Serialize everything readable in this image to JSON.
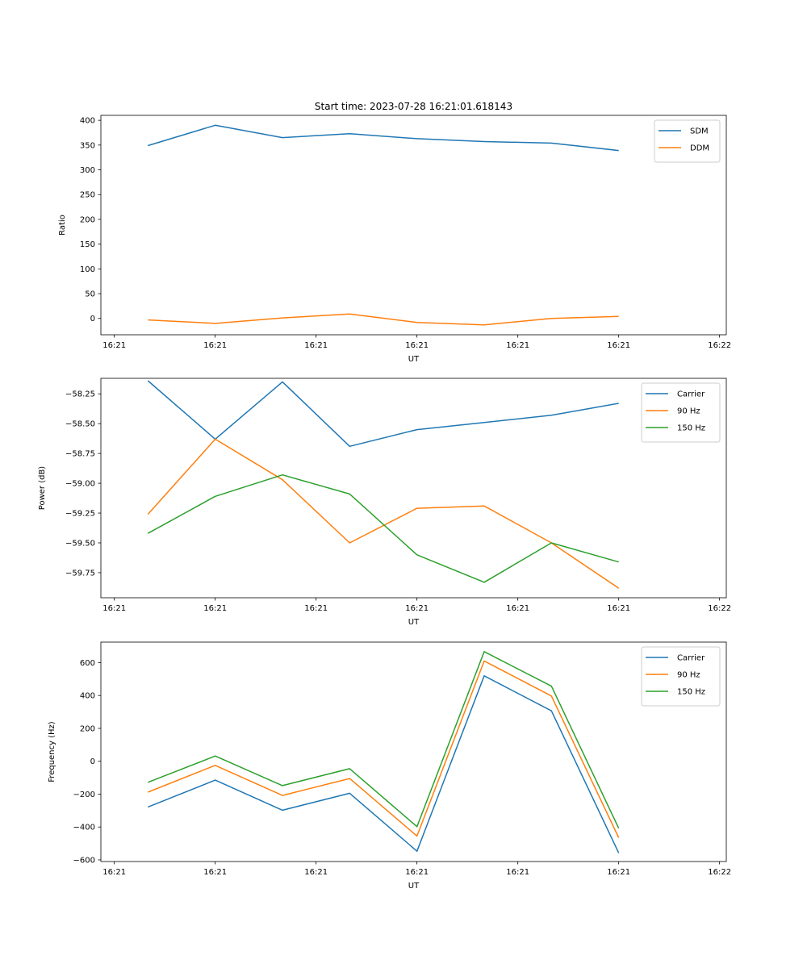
{
  "chart_data": [
    {
      "type": "line",
      "title": "Start time: 2023-07-28 16:21:01.618143",
      "xlabel": "UT",
      "ylabel": "Ratio",
      "xlim": [
        -0.2,
        9.1
      ],
      "ylim": [
        -33,
        410
      ],
      "x": [
        0.5,
        1.5,
        2.5,
        3.5,
        4.5,
        5.5,
        6.5,
        7.5
      ],
      "x_ticks": [
        0,
        1.5,
        3,
        4.5,
        6,
        7.5,
        9
      ],
      "x_tick_labels": [
        "16:21",
        "16:21",
        "16:21",
        "16:21",
        "16:21",
        "16:21",
        "16:22"
      ],
      "y_ticks": [
        0,
        50,
        100,
        150,
        200,
        250,
        300,
        350,
        400
      ],
      "y_tick_labels": [
        "0",
        "50",
        "100",
        "150",
        "200",
        "250",
        "300",
        "350",
        "400"
      ],
      "legend": "upper right",
      "series": [
        {
          "name": "SDM",
          "color": "#1f77b4",
          "values": [
            349,
            390,
            365,
            373,
            363,
            357,
            354,
            339
          ]
        },
        {
          "name": "DDM",
          "color": "#ff7f0e",
          "values": [
            -3,
            -10,
            1,
            9,
            -8,
            -13,
            0,
            4
          ]
        }
      ]
    },
    {
      "type": "line",
      "xlabel": "UT",
      "ylabel": "Power (dB)",
      "xlim": [
        -0.2,
        9.1
      ],
      "ylim": [
        -59.96,
        -58.12
      ],
      "x": [
        0.5,
        1.5,
        2.5,
        3.5,
        4.5,
        5.5,
        6.5,
        7.5
      ],
      "x_ticks": [
        0,
        1.5,
        3,
        4.5,
        6,
        7.5,
        9
      ],
      "x_tick_labels": [
        "16:21",
        "16:21",
        "16:21",
        "16:21",
        "16:21",
        "16:21",
        "16:22"
      ],
      "y_ticks": [
        -58.25,
        -58.5,
        -58.75,
        -59.0,
        -59.25,
        -59.5,
        -59.75
      ],
      "y_tick_labels": [
        "−58.25",
        "−58.50",
        "−58.75",
        "−59.00",
        "−59.25",
        "−59.50",
        "−59.75"
      ],
      "legend": "upper right",
      "series": [
        {
          "name": "Carrier",
          "color": "#1f77b4",
          "values": [
            -58.14,
            -58.63,
            -58.15,
            -58.69,
            -58.55,
            -58.49,
            -58.43,
            -58.33
          ]
        },
        {
          "name": "90 Hz",
          "color": "#ff7f0e",
          "values": [
            -59.26,
            -58.63,
            -58.97,
            -59.5,
            -59.21,
            -59.19,
            -59.5,
            -59.88
          ]
        },
        {
          "name": "150 Hz",
          "color": "#2ca02c",
          "values": [
            -59.42,
            -59.11,
            -58.93,
            -59.09,
            -59.6,
            -59.83,
            -59.5,
            -59.66
          ]
        }
      ]
    },
    {
      "type": "line",
      "xlabel": "UT",
      "ylabel": "Frequency (Hz)",
      "xlim": [
        -0.2,
        9.1
      ],
      "ylim": [
        -610,
        725
      ],
      "x": [
        0.5,
        1.5,
        2.5,
        3.5,
        4.5,
        5.5,
        6.5,
        7.5
      ],
      "x_ticks": [
        0,
        1.5,
        3,
        4.5,
        6,
        7.5,
        9
      ],
      "x_tick_labels": [
        "16:21",
        "16:21",
        "16:21",
        "16:21",
        "16:21",
        "16:21",
        "16:22"
      ],
      "y_ticks": [
        -600,
        -400,
        -200,
        0,
        200,
        400,
        600
      ],
      "y_tick_labels": [
        "−600",
        "−400",
        "−200",
        "0",
        "200",
        "400",
        "600"
      ],
      "legend": "upper right",
      "series": [
        {
          "name": "Carrier",
          "color": "#1f77b4",
          "values": [
            -278,
            -115,
            -298,
            -195,
            -547,
            520,
            307,
            -558
          ]
        },
        {
          "name": "90 Hz",
          "color": "#ff7f0e",
          "values": [
            -188,
            -25,
            -208,
            -105,
            -455,
            610,
            397,
            -465
          ]
        },
        {
          "name": "150 Hz",
          "color": "#2ca02c",
          "values": [
            -128,
            32,
            -148,
            -45,
            -398,
            667,
            457,
            -408
          ]
        }
      ]
    }
  ]
}
